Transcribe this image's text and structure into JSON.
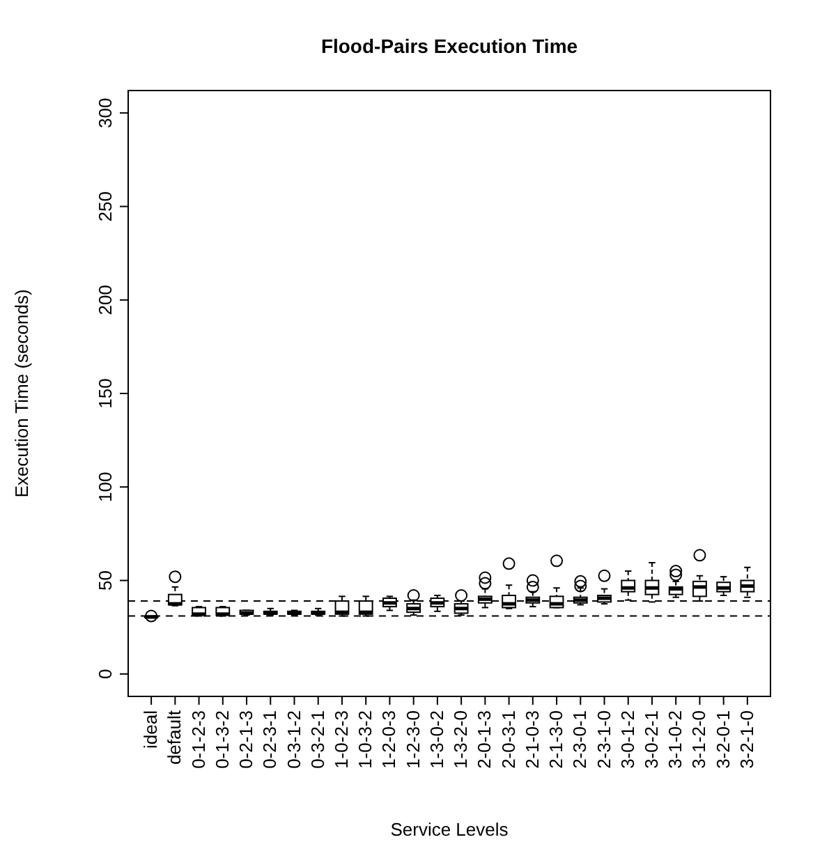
{
  "chart_data": {
    "type": "box",
    "title": "Flood-Pairs Execution Time",
    "xlabel": "Service Levels",
    "ylabel": "Execution Time (seconds)",
    "categories": [
      "ideal",
      "default",
      "0-1-2-3",
      "0-1-3-2",
      "0-2-1-3",
      "0-2-3-1",
      "0-3-1-2",
      "0-3-2-1",
      "1-0-2-3",
      "1-0-3-2",
      "1-2-0-3",
      "1-2-3-0",
      "1-3-0-2",
      "1-3-2-0",
      "2-0-1-3",
      "2-0-3-1",
      "2-1-0-3",
      "2-1-3-0",
      "2-3-0-1",
      "2-3-1-0",
      "3-0-1-2",
      "3-0-2-1",
      "3-1-0-2",
      "3-1-2-0",
      "3-2-0-1",
      "3-2-1-0"
    ],
    "boxes": [
      {
        "low": 30,
        "q1": 30.3,
        "median": 30.5,
        "q3": 30.8,
        "high": 31,
        "outliers": [
          31
        ]
      },
      {
        "low": 36.5,
        "q1": 37,
        "median": 37.5,
        "q3": 42.5,
        "high": 46.5,
        "outliers": [
          52
        ]
      },
      {
        "low": 31,
        "q1": 31.5,
        "median": 32,
        "q3": 35.5,
        "high": 36
      },
      {
        "low": 31,
        "q1": 31.5,
        "median": 32,
        "q3": 35.5,
        "high": 36
      },
      {
        "low": 31.5,
        "q1": 32,
        "median": 32.5,
        "q3": 34,
        "high": 34
      },
      {
        "low": 31.5,
        "q1": 32,
        "median": 32.5,
        "q3": 33.5,
        "high": 35
      },
      {
        "low": 31.5,
        "q1": 32,
        "median": 32.5,
        "q3": 33.5,
        "high": 34
      },
      {
        "low": 31.5,
        "q1": 32,
        "median": 32.5,
        "q3": 33.5,
        "high": 35
      },
      {
        "low": 31,
        "q1": 32,
        "median": 33,
        "q3": 39,
        "high": 41.5
      },
      {
        "low": 31,
        "q1": 32,
        "median": 33,
        "q3": 39,
        "high": 41.5
      },
      {
        "low": 34,
        "q1": 36,
        "median": 38,
        "q3": 40.5,
        "high": 41.5
      },
      {
        "low": 31.5,
        "q1": 33,
        "median": 35,
        "q3": 37.5,
        "high": 39.5,
        "outliers": [
          42
        ]
      },
      {
        "low": 33.5,
        "q1": 36,
        "median": 38,
        "q3": 40.5,
        "high": 42
      },
      {
        "low": 31.5,
        "q1": 32.5,
        "median": 35,
        "q3": 37.5,
        "high": 39,
        "outliers": [
          42
        ]
      },
      {
        "low": 35.5,
        "q1": 38,
        "median": 40,
        "q3": 41.5,
        "high": 45.5,
        "outliers": [
          48.5,
          51.5
        ]
      },
      {
        "low": 35,
        "q1": 35.5,
        "median": 37.5,
        "q3": 42,
        "high": 47.5,
        "outliers": [
          59
        ]
      },
      {
        "low": 36,
        "q1": 38,
        "median": 39.5,
        "q3": 41,
        "high": 44,
        "outliers": [
          46.5,
          50
        ]
      },
      {
        "low": 35.5,
        "q1": 35.5,
        "median": 37.5,
        "q3": 41.5,
        "high": 46,
        "outliers": [
          60.5
        ]
      },
      {
        "low": 37,
        "q1": 38,
        "median": 39.5,
        "q3": 41,
        "high": 46,
        "outliers": [
          47,
          49.5
        ]
      },
      {
        "low": 37.5,
        "q1": 38.5,
        "median": 40.5,
        "q3": 42,
        "high": 45.5,
        "outliers": [
          52.5
        ]
      },
      {
        "low": 39.5,
        "q1": 44,
        "median": 46,
        "q3": 50,
        "high": 55
      },
      {
        "low": 38.5,
        "q1": 42.5,
        "median": 46,
        "q3": 50,
        "high": 59.5
      },
      {
        "low": 41,
        "q1": 42.5,
        "median": 45.5,
        "q3": 46.5,
        "high": 49.5,
        "outliers": [
          53,
          55
        ]
      },
      {
        "low": 39,
        "q1": 41.5,
        "median": 46.5,
        "q3": 49.5,
        "high": 52.5,
        "outliers": [
          63.5
        ]
      },
      {
        "low": 42,
        "q1": 44,
        "median": 46,
        "q3": 49,
        "high": 52
      },
      {
        "low": 41,
        "q1": 44,
        "median": 47,
        "q3": 50,
        "high": 57
      }
    ],
    "ylim": [
      -12,
      312
    ],
    "yticks": [
      0,
      50,
      100,
      150,
      200,
      250,
      300
    ],
    "ref_lines": [
      {
        "axis": "y",
        "value": 31,
        "line_style": "dashed"
      },
      {
        "axis": "y",
        "value": 39,
        "line_style": "dashed"
      }
    ]
  }
}
